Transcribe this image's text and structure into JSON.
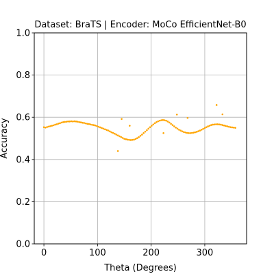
{
  "chart_data": {
    "type": "scatter",
    "title": "Dataset: BraTS | Encoder: MoCo EfficientNet-B0",
    "xlabel": "Theta (Degrees)",
    "ylabel": "Accuracy",
    "xlim": [
      -18,
      378
    ],
    "ylim": [
      0.0,
      1.0
    ],
    "x_ticks": [
      0,
      100,
      200,
      300
    ],
    "y_ticks": [
      0.0,
      0.2,
      0.4,
      0.6,
      0.8,
      1.0
    ],
    "x_tick_labels": [
      "0",
      "100",
      "200",
      "300"
    ],
    "y_tick_labels": [
      "0.0",
      "0.2",
      "0.4",
      "0.6",
      "0.8",
      "1.0"
    ],
    "grid": true,
    "marker_color": "#ffa500",
    "series": [
      {
        "points": [
          [
            0,
            0.553
          ],
          [
            3,
            0.551
          ],
          [
            6,
            0.554
          ],
          [
            9,
            0.556
          ],
          [
            12,
            0.558
          ],
          [
            15,
            0.56
          ],
          [
            18,
            0.562
          ],
          [
            21,
            0.565
          ],
          [
            24,
            0.567
          ],
          [
            27,
            0.57
          ],
          [
            30,
            0.572
          ],
          [
            33,
            0.575
          ],
          [
            36,
            0.577
          ],
          [
            39,
            0.578
          ],
          [
            42,
            0.579
          ],
          [
            45,
            0.58
          ],
          [
            48,
            0.58
          ],
          [
            51,
            0.581
          ],
          [
            54,
            0.58
          ],
          [
            57,
            0.581
          ],
          [
            60,
            0.58
          ],
          [
            63,
            0.579
          ],
          [
            66,
            0.577
          ],
          [
            69,
            0.576
          ],
          [
            72,
            0.574
          ],
          [
            75,
            0.573
          ],
          [
            78,
            0.571
          ],
          [
            81,
            0.569
          ],
          [
            84,
            0.568
          ],
          [
            87,
            0.566
          ],
          [
            90,
            0.564
          ],
          [
            93,
            0.563
          ],
          [
            96,
            0.561
          ],
          [
            99,
            0.558
          ],
          [
            102,
            0.555
          ],
          [
            105,
            0.552
          ],
          [
            108,
            0.549
          ],
          [
            111,
            0.546
          ],
          [
            114,
            0.543
          ],
          [
            117,
            0.54
          ],
          [
            120,
            0.537
          ],
          [
            123,
            0.533
          ],
          [
            126,
            0.529
          ],
          [
            129,
            0.526
          ],
          [
            132,
            0.522
          ],
          [
            135,
            0.518
          ],
          [
            138,
            0.514
          ],
          [
            141,
            0.51
          ],
          [
            144,
            0.506
          ],
          [
            147,
            0.502
          ],
          [
            150,
            0.498
          ],
          [
            153,
            0.496
          ],
          [
            156,
            0.494
          ],
          [
            159,
            0.493
          ],
          [
            162,
            0.492
          ],
          [
            165,
            0.493
          ],
          [
            168,
            0.494
          ],
          [
            171,
            0.497
          ],
          [
            174,
            0.501
          ],
          [
            177,
            0.506
          ],
          [
            180,
            0.512
          ],
          [
            183,
            0.518
          ],
          [
            186,
            0.525
          ],
          [
            189,
            0.532
          ],
          [
            192,
            0.539
          ],
          [
            195,
            0.546
          ],
          [
            198,
            0.553
          ],
          [
            201,
            0.56
          ],
          [
            204,
            0.566
          ],
          [
            207,
            0.572
          ],
          [
            210,
            0.577
          ],
          [
            213,
            0.581
          ],
          [
            216,
            0.584
          ],
          [
            219,
            0.586
          ],
          [
            222,
            0.587
          ],
          [
            225,
            0.586
          ],
          [
            228,
            0.584
          ],
          [
            231,
            0.58
          ],
          [
            234,
            0.575
          ],
          [
            237,
            0.569
          ],
          [
            240,
            0.563
          ],
          [
            243,
            0.557
          ],
          [
            246,
            0.551
          ],
          [
            249,
            0.546
          ],
          [
            252,
            0.541
          ],
          [
            255,
            0.537
          ],
          [
            258,
            0.533
          ],
          [
            261,
            0.53
          ],
          [
            264,
            0.528
          ],
          [
            267,
            0.526
          ],
          [
            270,
            0.525
          ],
          [
            273,
            0.525
          ],
          [
            276,
            0.526
          ],
          [
            279,
            0.527
          ],
          [
            282,
            0.529
          ],
          [
            285,
            0.531
          ],
          [
            288,
            0.534
          ],
          [
            291,
            0.537
          ],
          [
            294,
            0.541
          ],
          [
            297,
            0.545
          ],
          [
            300,
            0.549
          ],
          [
            303,
            0.553
          ],
          [
            306,
            0.557
          ],
          [
            309,
            0.56
          ],
          [
            312,
            0.563
          ],
          [
            315,
            0.565
          ],
          [
            318,
            0.566
          ],
          [
            321,
            0.567
          ],
          [
            324,
            0.567
          ],
          [
            327,
            0.566
          ],
          [
            330,
            0.565
          ],
          [
            333,
            0.563
          ],
          [
            336,
            0.561
          ],
          [
            339,
            0.559
          ],
          [
            342,
            0.557
          ],
          [
            345,
            0.555
          ],
          [
            348,
            0.553
          ],
          [
            351,
            0.552
          ],
          [
            354,
            0.551
          ],
          [
            357,
            0.55
          ],
          [
            138,
            0.44
          ],
          [
            145,
            0.592
          ],
          [
            160,
            0.56
          ],
          [
            223,
            0.525
          ],
          [
            248,
            0.613
          ],
          [
            268,
            0.597
          ],
          [
            322,
            0.658
          ],
          [
            333,
            0.614
          ]
        ]
      }
    ]
  }
}
